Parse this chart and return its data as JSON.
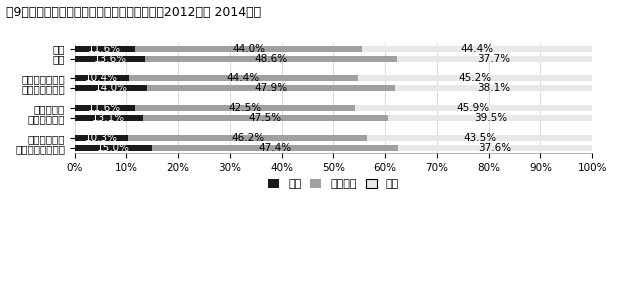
{
  "title": "図9　誰が日本社会の希望を上昇させたか？（2012年～ 2014年）",
  "categories": [
    "男性",
    "女性",
    "自民党好感度高",
    "民主党好感度高",
    "株式所有者",
    "株式非所有者",
    "中国好感度低",
    "中国好感度中・高"
  ],
  "segments": [
    {
      "label": "下降",
      "color": "#1a1a1a",
      "values": [
        11.6,
        13.6,
        10.4,
        14.0,
        11.6,
        13.1,
        10.3,
        15.0
      ]
    },
    {
      "label": "変化なし",
      "color": "#a0a0a0",
      "values": [
        44.0,
        48.6,
        44.4,
        47.9,
        42.5,
        47.5,
        46.2,
        47.4
      ]
    },
    {
      "label": "上昇",
      "color": "#e8e8e8",
      "values": [
        44.4,
        37.7,
        45.2,
        38.1,
        45.9,
        39.5,
        43.5,
        37.6
      ]
    }
  ],
  "xlim": [
    0,
    100
  ],
  "xtick_labels": [
    "0%",
    "10%",
    "20%",
    "30%",
    "40%",
    "50%",
    "60%",
    "70%",
    "80%",
    "90%",
    "100%"
  ],
  "xtick_values": [
    0,
    10,
    20,
    30,
    40,
    50,
    60,
    70,
    80,
    90,
    100
  ],
  "bar_height": 0.6,
  "title_fontsize": 9,
  "label_fontsize": 7.5,
  "tick_fontsize": 7.5,
  "legend_fontsize": 8,
  "group_gaps": [
    0,
    1,
    3,
    4,
    6,
    7,
    9,
    10
  ]
}
